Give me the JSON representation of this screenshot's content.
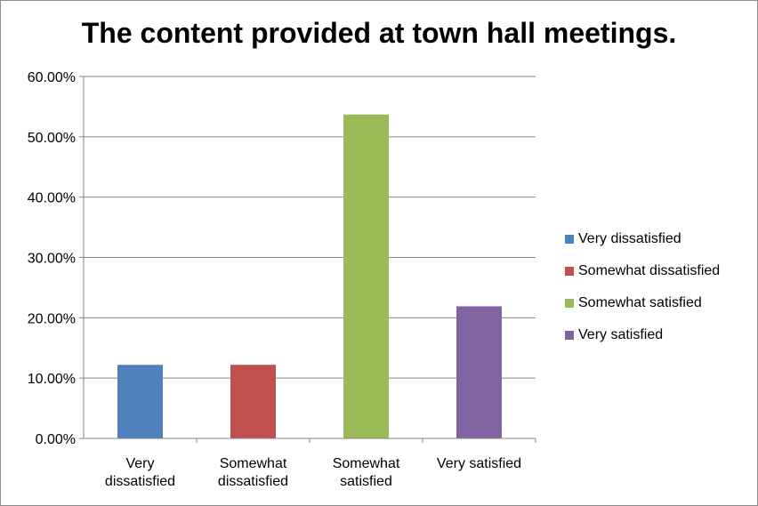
{
  "chart_data": {
    "type": "bar",
    "title": "The content provided at town hall meetings.",
    "categories": [
      "Very dissatisfied",
      "Somewhat dissatisfied",
      "Somewhat satisfied",
      "Very satisfied"
    ],
    "category_label_lines": [
      [
        "Very",
        "dissatisfied"
      ],
      [
        "Somewhat",
        "dissatisfied"
      ],
      [
        "Somewhat",
        "satisfied"
      ],
      [
        "Very satisfied"
      ]
    ],
    "values": [
      12.2,
      12.2,
      53.7,
      21.9
    ],
    "colors": [
      "#4f81bd",
      "#c0504d",
      "#9bbb59",
      "#8064a2"
    ],
    "ylim": [
      0,
      60
    ],
    "yticks": [
      0,
      10,
      20,
      30,
      40,
      50,
      60
    ],
    "ytick_labels": [
      "0.00%",
      "10.00%",
      "20.00%",
      "30.00%",
      "40.00%",
      "50.00%",
      "60.00%"
    ],
    "grid": true,
    "legend_position": "right",
    "legend": [
      "Very dissatisfied",
      "Somewhat dissatisfied",
      "Somewhat satisfied",
      "Very satisfied"
    ]
  }
}
